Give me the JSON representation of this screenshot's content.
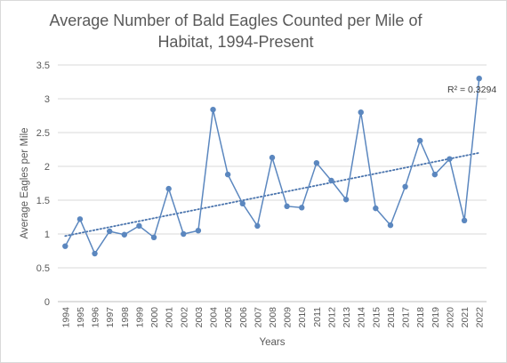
{
  "chart_data": {
    "type": "line",
    "title_lines": [
      "Average Number of Bald Eagles Counted per Mile of",
      "Habitat, 1994-Present"
    ],
    "xlabel": "Years",
    "ylabel": "Average Eagles per Mile",
    "categories": [
      "1994",
      "1995",
      "1996",
      "1997",
      "1998",
      "1999",
      "2000",
      "2001",
      "2002",
      "2003",
      "2004",
      "2005",
      "2006",
      "2007",
      "2008",
      "2009",
      "2010",
      "2011",
      "2012",
      "2013",
      "2014",
      "2015",
      "2016",
      "2017",
      "2018",
      "2019",
      "2020",
      "2021",
      "2022"
    ],
    "series": [
      {
        "values": [
          0.82,
          1.22,
          0.71,
          1.04,
          0.99,
          1.12,
          0.95,
          1.67,
          1.0,
          1.05,
          2.84,
          1.88,
          1.45,
          1.12,
          2.13,
          1.41,
          1.39,
          2.05,
          1.79,
          1.51,
          2.8,
          1.38,
          1.13,
          1.7,
          2.38,
          1.88,
          2.11,
          1.2,
          3.3
        ],
        "color": "#5b87bf"
      }
    ],
    "trendline": {
      "type": "linear",
      "style": "dotted",
      "start": 0.97,
      "end": 2.2,
      "label": "R² = 0.3294",
      "color": "#4a74ad"
    },
    "yticks": [
      "0",
      "0.5",
      "1",
      "1.5",
      "2",
      "2.5",
      "3",
      "3.5"
    ],
    "ylim": [
      0,
      3.5
    ],
    "grid": "horizontal",
    "legend": "none"
  }
}
